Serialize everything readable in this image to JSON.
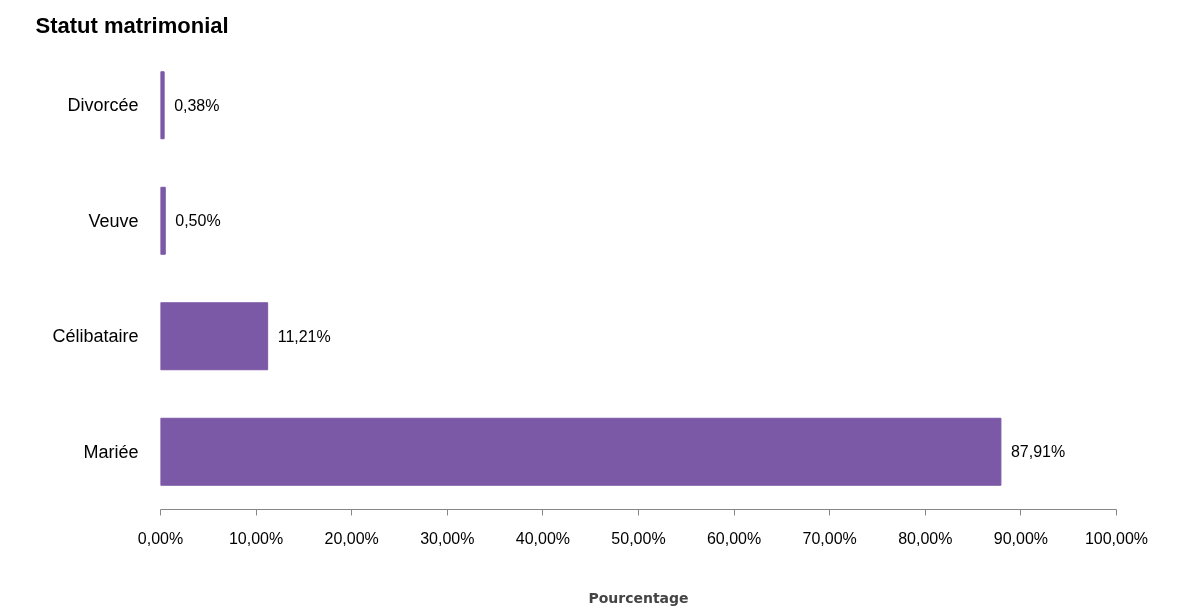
{
  "chart_data": {
    "type": "bar",
    "orientation": "horizontal",
    "title": "Statut matrimonial",
    "xlabel": "Pourcentage",
    "categories": [
      "Divorcée",
      "Veuve",
      "Célibataire",
      "Mariée"
    ],
    "values": [
      0.38,
      0.5,
      11.21,
      87.91
    ],
    "value_labels": [
      "0,38%",
      "0,50%",
      "11,21%",
      "87,91%"
    ],
    "color": "#7b59a6",
    "xlim": [
      0,
      100
    ],
    "xticks": [
      {
        "value": 0,
        "label": "0,00%"
      },
      {
        "value": 10,
        "label": "10,00%"
      },
      {
        "value": 20,
        "label": "20,00%"
      },
      {
        "value": 30,
        "label": "30,00%"
      },
      {
        "value": 40,
        "label": "40,00%"
      },
      {
        "value": 50,
        "label": "50,00%"
      },
      {
        "value": 60,
        "label": "60,00%"
      },
      {
        "value": 70,
        "label": "70,00%"
      },
      {
        "value": 80,
        "label": "80,00%"
      },
      {
        "value": 90,
        "label": "90,00%"
      },
      {
        "value": 100,
        "label": "100,00%"
      }
    ],
    "grid": false
  }
}
